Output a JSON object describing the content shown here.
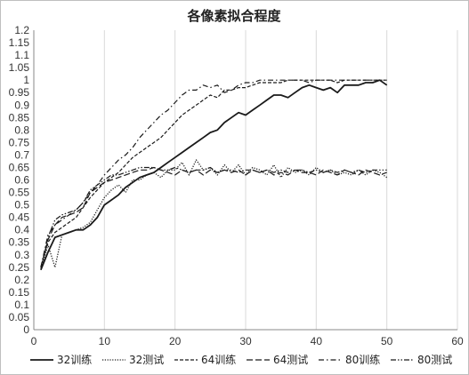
{
  "chart_data": {
    "type": "line",
    "title": "各像素拟合程度",
    "xlim": [
      0,
      60
    ],
    "ylim": [
      0,
      1.2
    ],
    "x_ticks": [
      "0",
      "10",
      "20",
      "30",
      "40",
      "50",
      "60"
    ],
    "y_ticks": [
      "0",
      "0.05",
      "0.1",
      "0.15",
      "0.2",
      "0.25",
      "0.3",
      "0.35",
      "0.4",
      "0.45",
      "0.5",
      "0.55",
      "0.6",
      "0.65",
      "0.7",
      "0.75",
      "0.8",
      "0.85",
      "0.9",
      "0.95",
      "1",
      "1.05",
      "1.1",
      "1.15",
      "1.2"
    ],
    "grid": "vertical",
    "legend_position": "bottom",
    "series": [
      {
        "name": "32训练",
        "style": "solid",
        "x": [
          1,
          2,
          3,
          4,
          5,
          6,
          7,
          8,
          9,
          10,
          11,
          12,
          13,
          14,
          15,
          16,
          17,
          18,
          19,
          20,
          21,
          22,
          23,
          24,
          25,
          26,
          27,
          28,
          29,
          30,
          31,
          32,
          33,
          34,
          35,
          36,
          37,
          38,
          39,
          40,
          41,
          42,
          43,
          44,
          45,
          46,
          47,
          48,
          49,
          50
        ],
        "y": [
          0.24,
          0.31,
          0.37,
          0.38,
          0.39,
          0.4,
          0.4,
          0.42,
          0.45,
          0.5,
          0.52,
          0.54,
          0.57,
          0.59,
          0.61,
          0.62,
          0.63,
          0.65,
          0.67,
          0.69,
          0.71,
          0.73,
          0.75,
          0.77,
          0.79,
          0.8,
          0.83,
          0.85,
          0.87,
          0.86,
          0.88,
          0.9,
          0.92,
          0.94,
          0.94,
          0.93,
          0.95,
          0.97,
          0.98,
          0.97,
          0.96,
          0.97,
          0.95,
          0.98,
          0.98,
          0.98,
          0.99,
          0.99,
          1.0,
          0.98
        ]
      },
      {
        "name": "32测试",
        "style": "dotted",
        "x": [
          1,
          2,
          3,
          4,
          5,
          6,
          7,
          8,
          9,
          10,
          11,
          12,
          13,
          14,
          15,
          16,
          17,
          18,
          19,
          20,
          21,
          22,
          23,
          24,
          25,
          26,
          27,
          28,
          29,
          30,
          31,
          32,
          33,
          34,
          35,
          36,
          37,
          38,
          39,
          40,
          41,
          42,
          43,
          44,
          45,
          46,
          47,
          48,
          49,
          50
        ],
        "y": [
          0.24,
          0.34,
          0.25,
          0.38,
          0.39,
          0.4,
          0.41,
          0.43,
          0.48,
          0.53,
          0.56,
          0.58,
          0.55,
          0.6,
          0.6,
          0.62,
          0.63,
          0.61,
          0.64,
          0.64,
          0.67,
          0.62,
          0.68,
          0.64,
          0.65,
          0.62,
          0.66,
          0.63,
          0.66,
          0.62,
          0.65,
          0.64,
          0.62,
          0.66,
          0.61,
          0.65,
          0.63,
          0.64,
          0.62,
          0.65,
          0.63,
          0.64,
          0.62,
          0.63,
          0.62,
          0.64,
          0.62,
          0.64,
          0.63,
          0.61
        ]
      },
      {
        "name": "64训练",
        "style": "short-dash",
        "x": [
          1,
          2,
          3,
          4,
          5,
          6,
          7,
          8,
          9,
          10,
          11,
          12,
          13,
          14,
          15,
          16,
          17,
          18,
          19,
          20,
          21,
          22,
          23,
          24,
          25,
          26,
          27,
          28,
          29,
          30,
          31,
          32,
          33,
          34,
          35,
          36,
          37,
          38,
          39,
          40,
          41,
          42,
          43,
          44,
          45,
          46,
          47,
          48,
          49,
          50
        ],
        "y": [
          0.25,
          0.35,
          0.39,
          0.41,
          0.43,
          0.45,
          0.49,
          0.53,
          0.56,
          0.59,
          0.61,
          0.63,
          0.66,
          0.69,
          0.71,
          0.73,
          0.75,
          0.77,
          0.8,
          0.83,
          0.86,
          0.88,
          0.9,
          0.92,
          0.94,
          0.93,
          0.96,
          0.96,
          0.97,
          0.97,
          0.98,
          0.99,
          0.99,
          0.99,
          0.99,
          1.0,
          1.0,
          1.0,
          1.0,
          1.0,
          1.0,
          1.0,
          0.99,
          1.0,
          1.0,
          1.0,
          1.0,
          1.0,
          1.0,
          1.0
        ]
      },
      {
        "name": "64测试",
        "style": "long-dash",
        "x": [
          1,
          2,
          3,
          4,
          5,
          6,
          7,
          8,
          9,
          10,
          11,
          12,
          13,
          14,
          15,
          16,
          17,
          18,
          19,
          20,
          21,
          22,
          23,
          24,
          25,
          26,
          27,
          28,
          29,
          30,
          31,
          32,
          33,
          34,
          35,
          36,
          37,
          38,
          39,
          40,
          41,
          42,
          43,
          44,
          45,
          46,
          47,
          48,
          49,
          50
        ],
        "y": [
          0.25,
          0.36,
          0.42,
          0.45,
          0.46,
          0.47,
          0.49,
          0.55,
          0.57,
          0.59,
          0.6,
          0.61,
          0.62,
          0.63,
          0.64,
          0.64,
          0.65,
          0.64,
          0.63,
          0.62,
          0.64,
          0.63,
          0.64,
          0.62,
          0.64,
          0.63,
          0.64,
          0.63,
          0.64,
          0.62,
          0.64,
          0.63,
          0.64,
          0.62,
          0.63,
          0.62,
          0.64,
          0.63,
          0.63,
          0.62,
          0.64,
          0.63,
          0.62,
          0.64,
          0.63,
          0.62,
          0.64,
          0.63,
          0.62,
          0.63
        ]
      },
      {
        "name": "80训练",
        "style": "dash-dot",
        "x": [
          1,
          2,
          3,
          4,
          5,
          6,
          7,
          8,
          9,
          10,
          11,
          12,
          13,
          14,
          15,
          16,
          17,
          18,
          19,
          20,
          21,
          22,
          23,
          24,
          25,
          26,
          27,
          28,
          29,
          30,
          31,
          32,
          33,
          34,
          35,
          36,
          37,
          38,
          39,
          40,
          41,
          42,
          43,
          44,
          45,
          46,
          47,
          48,
          49,
          50
        ],
        "y": [
          0.25,
          0.38,
          0.42,
          0.44,
          0.46,
          0.48,
          0.51,
          0.55,
          0.58,
          0.62,
          0.65,
          0.68,
          0.7,
          0.73,
          0.77,
          0.8,
          0.83,
          0.86,
          0.88,
          0.91,
          0.94,
          0.96,
          0.96,
          0.98,
          0.97,
          0.98,
          0.95,
          0.96,
          0.98,
          0.99,
          0.99,
          1.0,
          1.0,
          1.0,
          1.0,
          1.0,
          1.0,
          1.0,
          0.99,
          1.0,
          1.0,
          1.0,
          1.0,
          1.0,
          1.0,
          1.0,
          1.0,
          1.0,
          1.0,
          1.0
        ]
      },
      {
        "name": "80测试",
        "style": "dash-dot-dot",
        "x": [
          1,
          2,
          3,
          4,
          5,
          6,
          7,
          8,
          9,
          10,
          11,
          12,
          13,
          14,
          15,
          16,
          17,
          18,
          19,
          20,
          21,
          22,
          23,
          24,
          25,
          26,
          27,
          28,
          29,
          30,
          31,
          32,
          33,
          34,
          35,
          36,
          37,
          38,
          39,
          40,
          41,
          42,
          43,
          44,
          45,
          46,
          47,
          48,
          49,
          50
        ],
        "y": [
          0.24,
          0.37,
          0.44,
          0.46,
          0.47,
          0.48,
          0.51,
          0.56,
          0.58,
          0.6,
          0.62,
          0.62,
          0.63,
          0.64,
          0.65,
          0.65,
          0.65,
          0.64,
          0.64,
          0.65,
          0.64,
          0.63,
          0.64,
          0.64,
          0.65,
          0.63,
          0.64,
          0.64,
          0.63,
          0.64,
          0.64,
          0.63,
          0.64,
          0.63,
          0.64,
          0.63,
          0.64,
          0.64,
          0.63,
          0.64,
          0.63,
          0.64,
          0.63,
          0.64,
          0.63,
          0.64,
          0.63,
          0.64,
          0.64,
          0.64
        ]
      }
    ]
  }
}
